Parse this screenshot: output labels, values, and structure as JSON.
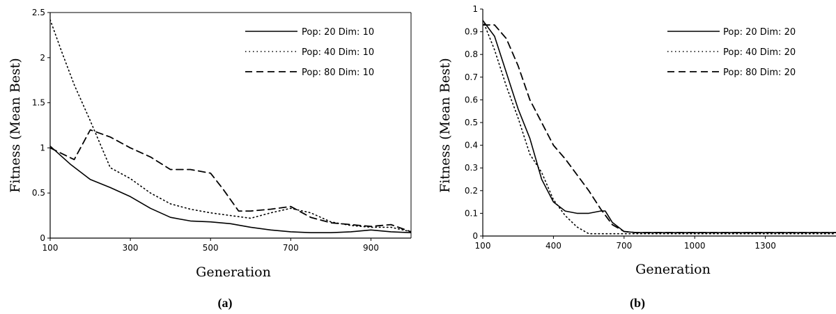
{
  "chart_data": [
    {
      "type": "line",
      "caption": "(a)",
      "xlabel": "Generation",
      "ylabel": "Fitness (Mean Best)",
      "xlim": [
        100,
        1000
      ],
      "ylim": [
        0,
        2.5
      ],
      "xticks": [
        "100",
        "300",
        "500",
        "700",
        "900"
      ],
      "yticks": [
        "0",
        "0.5",
        "1",
        "1.5",
        "2",
        "2.5"
      ],
      "legend_position": "top-right",
      "series": [
        {
          "name": "Pop: 20 Dim: 10",
          "style": "solid",
          "x": [
            100,
            150,
            200,
            250,
            300,
            350,
            400,
            450,
            500,
            550,
            600,
            650,
            700,
            750,
            800,
            850,
            900,
            950,
            1000
          ],
          "y": [
            1.02,
            0.82,
            0.65,
            0.56,
            0.46,
            0.33,
            0.23,
            0.19,
            0.18,
            0.16,
            0.12,
            0.09,
            0.07,
            0.06,
            0.06,
            0.07,
            0.09,
            0.07,
            0.06
          ]
        },
        {
          "name": "Pop: 40 Dim: 10",
          "style": "dotted",
          "x": [
            100,
            130,
            160,
            200,
            250,
            300,
            350,
            400,
            450,
            500,
            550,
            600,
            650,
            700,
            750,
            800,
            850,
            900,
            950,
            1000
          ],
          "y": [
            2.42,
            2.05,
            1.7,
            1.3,
            0.78,
            0.66,
            0.5,
            0.38,
            0.32,
            0.28,
            0.25,
            0.22,
            0.28,
            0.33,
            0.28,
            0.18,
            0.14,
            0.12,
            0.12,
            0.07
          ]
        },
        {
          "name": "Pop: 80 Dim: 10",
          "style": "dashed",
          "x": [
            100,
            160,
            200,
            250,
            300,
            350,
            400,
            450,
            500,
            530,
            570,
            600,
            650,
            700,
            750,
            800,
            850,
            900,
            950,
            1000
          ],
          "y": [
            1.0,
            0.87,
            1.2,
            1.12,
            1.0,
            0.9,
            0.76,
            0.76,
            0.72,
            0.55,
            0.3,
            0.3,
            0.32,
            0.35,
            0.23,
            0.17,
            0.15,
            0.13,
            0.15,
            0.07
          ]
        }
      ]
    },
    {
      "type": "line",
      "caption": "(b)",
      "xlabel": "Generation",
      "ylabel": "Fitness (Mean Best)",
      "xlim": [
        100,
        1600
      ],
      "ylim": [
        0,
        1
      ],
      "xticks": [
        "100",
        "400",
        "700",
        "1000",
        "1300"
      ],
      "yticks": [
        "0",
        "0.1",
        "0.2",
        "0.3",
        "0.4",
        "0.5",
        "0.6",
        "0.7",
        "0.8",
        "0.9",
        "1"
      ],
      "legend_position": "top-right",
      "series": [
        {
          "name": "Pop: 20 Dim: 20",
          "style": "solid",
          "x": [
            100,
            150,
            200,
            250,
            300,
            350,
            400,
            450,
            500,
            550,
            600,
            620,
            650,
            700,
            750,
            1000,
            1300,
            1600
          ],
          "y": [
            0.95,
            0.88,
            0.72,
            0.56,
            0.43,
            0.25,
            0.15,
            0.11,
            0.1,
            0.1,
            0.11,
            0.11,
            0.06,
            0.02,
            0.015,
            0.015,
            0.015,
            0.015
          ]
        },
        {
          "name": "Pop: 40 Dim: 20",
          "style": "dotted",
          "x": [
            100,
            150,
            200,
            250,
            300,
            350,
            400,
            450,
            500,
            550,
            600,
            700,
            1000,
            1300,
            1600
          ],
          "y": [
            0.95,
            0.82,
            0.66,
            0.52,
            0.36,
            0.28,
            0.16,
            0.09,
            0.04,
            0.01,
            0.01,
            0.01,
            0.01,
            0.01,
            0.01
          ]
        },
        {
          "name": "Pop: 80 Dim: 20",
          "style": "dashed",
          "x": [
            100,
            150,
            200,
            250,
            300,
            350,
            400,
            450,
            500,
            550,
            600,
            650,
            700,
            750,
            1000,
            1300,
            1600
          ],
          "y": [
            0.93,
            0.93,
            0.87,
            0.75,
            0.6,
            0.5,
            0.4,
            0.34,
            0.27,
            0.2,
            0.12,
            0.05,
            0.02,
            0.015,
            0.015,
            0.015,
            0.015
          ]
        }
      ]
    }
  ]
}
